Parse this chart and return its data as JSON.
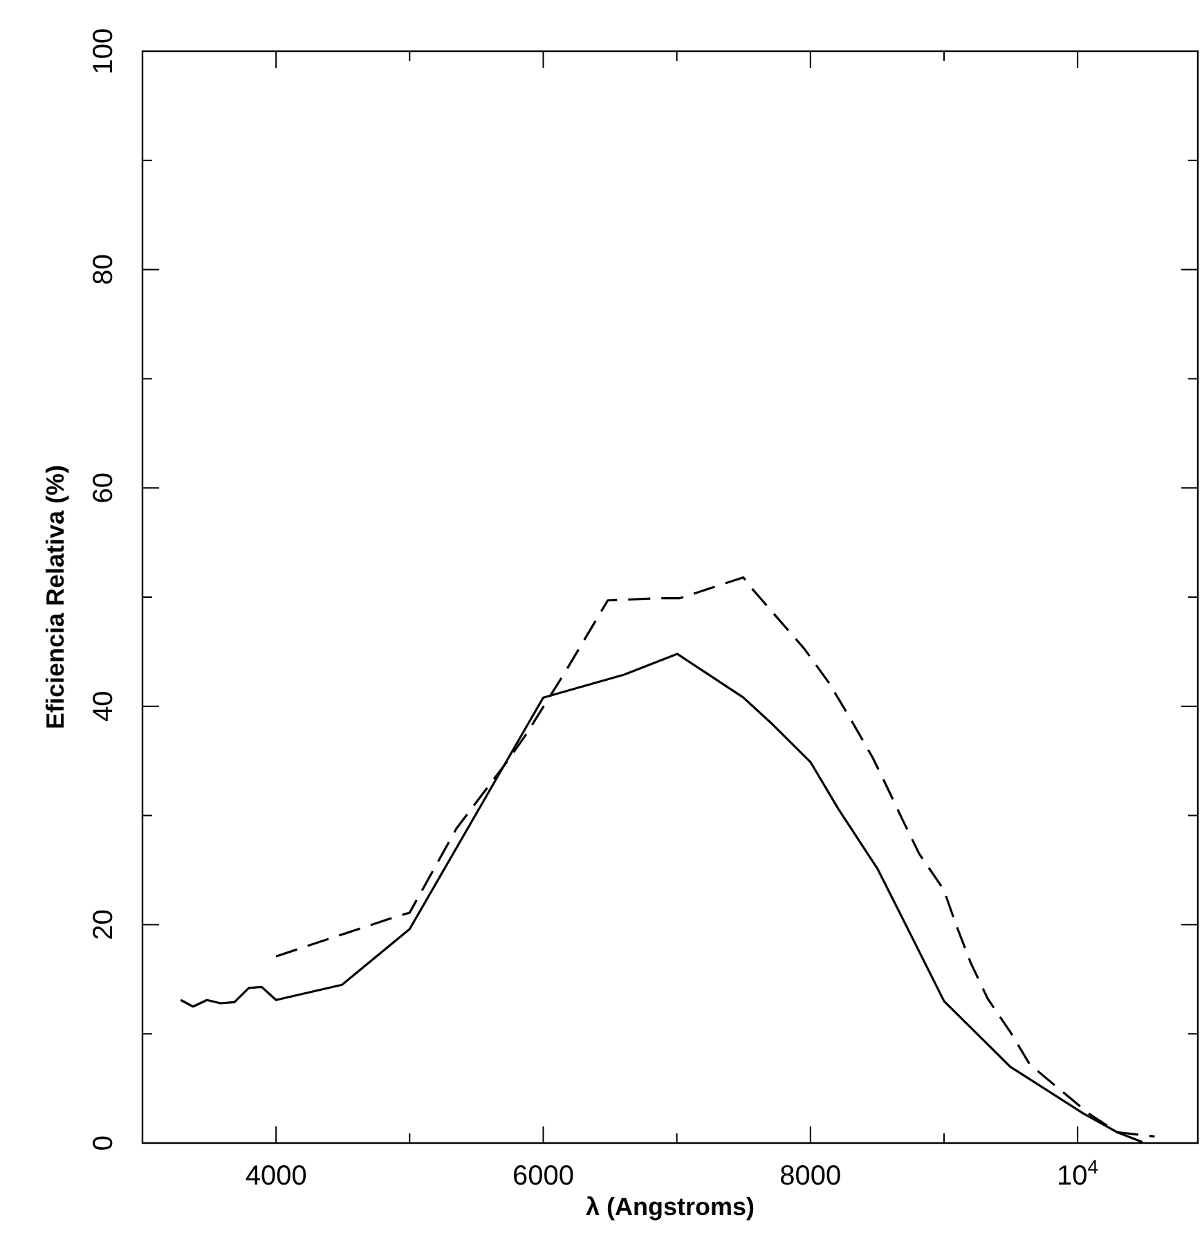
{
  "chart_data": {
    "type": "line",
    "xlabel": "λ (Angstroms)",
    "ylabel": "Eficiencia Relativa (%)",
    "xlim": [
      3000,
      10900
    ],
    "xticks": [
      {
        "value": 3000,
        "label": null
      },
      4000,
      {
        "value": 5000,
        "label": null
      },
      6000,
      {
        "value": 7000,
        "label": null
      },
      8000,
      {
        "value": 9000,
        "label": null
      },
      {
        "value": 10000,
        "label": "10$^{4}$"
      }
    ],
    "ylim": [
      0,
      100
    ],
    "yticks": [
      0,
      {
        "value": 10,
        "label": null
      },
      20,
      {
        "value": 30,
        "label": null
      },
      40,
      {
        "value": 50,
        "label": null
      },
      60,
      {
        "value": 70,
        "label": null
      },
      80,
      {
        "value": 90,
        "label": null
      },
      100
    ],
    "grid": false,
    "marker": "none",
    "series": [
      {
        "color": "#000000",
        "line_style": "dashed",
        "x": [
          4000,
          4840,
          5000,
          5350,
          5721,
          5870,
          6167,
          6483,
          6874,
          7022,
          7498,
          7561,
          7952,
          8136,
          8283,
          8466,
          8558,
          8686,
          8814,
          8998,
          9090,
          9200,
          9328,
          9495,
          9642,
          10083,
          10294,
          10576
        ],
        "values": [
          17.1,
          20.5,
          21.1,
          28.8,
          34.8,
          37.4,
          43.2,
          49.7,
          49.9,
          49.9,
          51.8,
          50.8,
          45.3,
          42.2,
          39.2,
          35.3,
          33.0,
          29.7,
          26.5,
          23.2,
          20.0,
          16.5,
          13.2,
          10.2,
          7.2,
          2.7,
          1.0,
          0.6
        ]
      },
      {
        "color": "#000000",
        "line_style": "solid",
        "x": [
          3286,
          3379,
          3483,
          3584,
          3688,
          3796,
          3892,
          4000,
          4494,
          5000,
          6000,
          6606,
          7004,
          7498,
          7703,
          8000,
          8209,
          8503,
          8705,
          9000,
          9495,
          10044,
          10294,
          10484
        ],
        "values": [
          13.1,
          12.5,
          13.1,
          12.8,
          12.9,
          14.2,
          14.3,
          13.1,
          14.5,
          19.6,
          40.8,
          42.9,
          44.8,
          40.8,
          38.5,
          34.9,
          30.6,
          25.1,
          20.2,
          13.0,
          7.0,
          2.7,
          1.0,
          0.1
        ]
      }
    ]
  }
}
